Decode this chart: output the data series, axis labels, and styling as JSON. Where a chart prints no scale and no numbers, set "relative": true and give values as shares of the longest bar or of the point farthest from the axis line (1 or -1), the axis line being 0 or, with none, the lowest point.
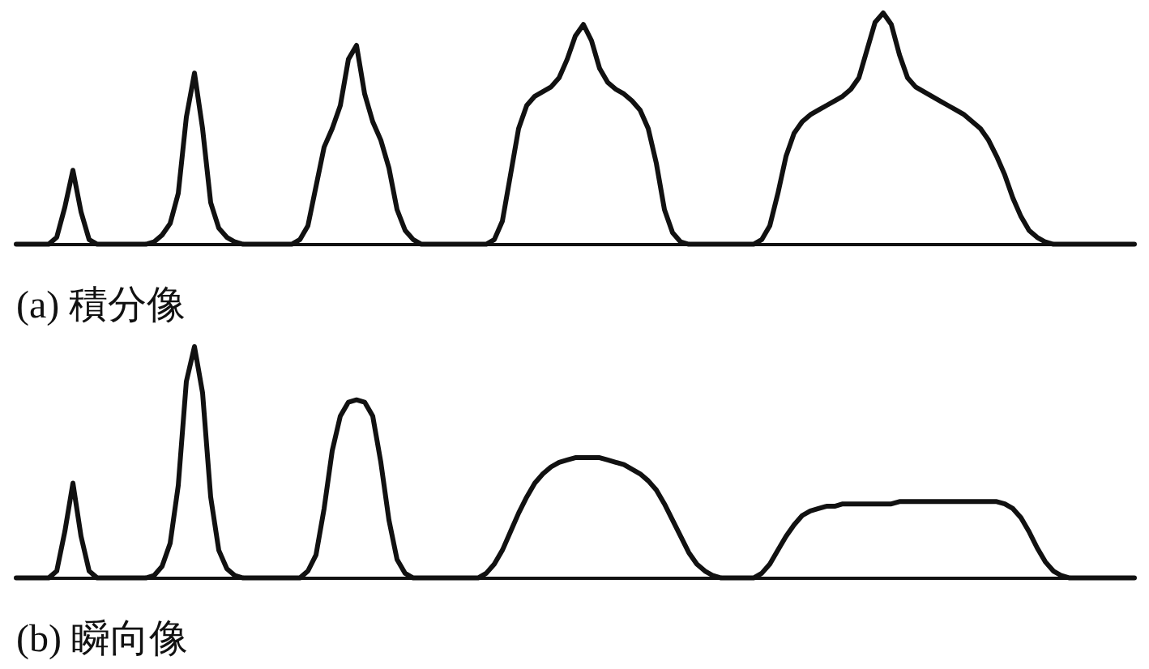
{
  "chart_data": [
    {
      "type": "line",
      "xlabel": "(a) 積分像",
      "relative": true,
      "grid": false,
      "legend": false,
      "marker": "none",
      "line_style": "solid",
      "categories": [
        null,
        null,
        null,
        null,
        null,
        null,
        null,
        null,
        null,
        null,
        null,
        null,
        null,
        null,
        null,
        null,
        null,
        null,
        null,
        null,
        null,
        null,
        null,
        null,
        null,
        null,
        null,
        null,
        null,
        null,
        null,
        null,
        null,
        null,
        null,
        null,
        null,
        null,
        null,
        null,
        null,
        null,
        null,
        null,
        null,
        null,
        null,
        null,
        null,
        null,
        null,
        null,
        null,
        null,
        null,
        null,
        null,
        null,
        null,
        null,
        null,
        null,
        null,
        null,
        null,
        null,
        null,
        null,
        null,
        null,
        null,
        null,
        null,
        null,
        null,
        null,
        null,
        null,
        null,
        null,
        null,
        null,
        null,
        null,
        null,
        null,
        null,
        null,
        null,
        null,
        null,
        null,
        null,
        null,
        null,
        null,
        null,
        null,
        null,
        null,
        null,
        null,
        null,
        null,
        null,
        null,
        null,
        null,
        null,
        null,
        null,
        null,
        null,
        null,
        null,
        null,
        null,
        null,
        null,
        null,
        null,
        null,
        null,
        null,
        null,
        null,
        null,
        null,
        null,
        null,
        null,
        null,
        null,
        null,
        null,
        null,
        null,
        null,
        null
      ],
      "series": [
        {
          "color": "#111111",
          "values": [
            0,
            0,
            0,
            0,
            0,
            0.03,
            0.16,
            0.32,
            0.14,
            0.02,
            0,
            0,
            0,
            0,
            0,
            0,
            0,
            0.01,
            0.04,
            0.09,
            0.22,
            0.55,
            0.74,
            0.5,
            0.18,
            0.07,
            0.03,
            0.01,
            0,
            0,
            0,
            0,
            0,
            0,
            0,
            0.02,
            0.08,
            0.25,
            0.42,
            0.5,
            0.6,
            0.8,
            0.86,
            0.65,
            0.53,
            0.45,
            0.33,
            0.15,
            0.06,
            0.02,
            0,
            0,
            0,
            0,
            0,
            0,
            0,
            0,
            0,
            0.02,
            0.1,
            0.3,
            0.5,
            0.6,
            0.64,
            0.66,
            0.68,
            0.72,
            0.8,
            0.9,
            0.95,
            0.88,
            0.76,
            0.7,
            0.67,
            0.65,
            0.62,
            0.58,
            0.5,
            0.35,
            0.15,
            0.05,
            0.01,
            0,
            0,
            0,
            0,
            0,
            0,
            0,
            0,
            0,
            0.02,
            0.08,
            0.22,
            0.38,
            0.48,
            0.53,
            0.56,
            0.58,
            0.6,
            0.62,
            0.64,
            0.67,
            0.72,
            0.84,
            0.96,
            1,
            0.95,
            0.82,
            0.72,
            0.68,
            0.66,
            0.64,
            0.62,
            0.6,
            0.58,
            0.56,
            0.53,
            0.5,
            0.45,
            0.38,
            0.3,
            0.2,
            0.12,
            0.06,
            0.03,
            0.01,
            0,
            0,
            0,
            0,
            0,
            0,
            0,
            0,
            0,
            0,
            0
          ]
        }
      ]
    },
    {
      "type": "line",
      "xlabel": "(b) 瞬向像",
      "relative": true,
      "grid": false,
      "legend": false,
      "marker": "none",
      "line_style": "solid",
      "categories": [
        null,
        null,
        null,
        null,
        null,
        null,
        null,
        null,
        null,
        null,
        null,
        null,
        null,
        null,
        null,
        null,
        null,
        null,
        null,
        null,
        null,
        null,
        null,
        null,
        null,
        null,
        null,
        null,
        null,
        null,
        null,
        null,
        null,
        null,
        null,
        null,
        null,
        null,
        null,
        null,
        null,
        null,
        null,
        null,
        null,
        null,
        null,
        null,
        null,
        null,
        null,
        null,
        null,
        null,
        null,
        null,
        null,
        null,
        null,
        null,
        null,
        null,
        null,
        null,
        null,
        null,
        null,
        null,
        null,
        null,
        null,
        null,
        null,
        null,
        null,
        null,
        null,
        null,
        null,
        null,
        null,
        null,
        null,
        null,
        null,
        null,
        null,
        null,
        null,
        null,
        null,
        null,
        null,
        null,
        null,
        null,
        null,
        null,
        null,
        null,
        null,
        null,
        null,
        null,
        null,
        null,
        null,
        null,
        null,
        null,
        null,
        null,
        null,
        null,
        null,
        null,
        null,
        null,
        null,
        null,
        null,
        null,
        null,
        null,
        null,
        null,
        null,
        null,
        null,
        null,
        null,
        null,
        null,
        null,
        null,
        null,
        null,
        null,
        null
      ],
      "series": [
        {
          "color": "#111111",
          "values": [
            0,
            0,
            0,
            0,
            0,
            0.03,
            0.2,
            0.41,
            0.18,
            0.03,
            0,
            0,
            0,
            0,
            0,
            0,
            0,
            0.01,
            0.05,
            0.15,
            0.4,
            0.85,
            1,
            0.8,
            0.35,
            0.12,
            0.04,
            0.01,
            0,
            0,
            0,
            0,
            0,
            0,
            0,
            0,
            0.03,
            0.1,
            0.3,
            0.55,
            0.7,
            0.76,
            0.77,
            0.76,
            0.7,
            0.5,
            0.25,
            0.08,
            0.02,
            0,
            0,
            0,
            0,
            0,
            0,
            0,
            0,
            0,
            0.02,
            0.06,
            0.12,
            0.2,
            0.28,
            0.35,
            0.41,
            0.45,
            0.48,
            0.5,
            0.51,
            0.52,
            0.52,
            0.52,
            0.52,
            0.51,
            0.5,
            0.49,
            0.47,
            0.45,
            0.42,
            0.38,
            0.32,
            0.25,
            0.18,
            0.11,
            0.06,
            0.03,
            0.01,
            0,
            0,
            0,
            0,
            0,
            0.02,
            0.06,
            0.12,
            0.18,
            0.23,
            0.27,
            0.29,
            0.3,
            0.31,
            0.31,
            0.32,
            0.32,
            0.32,
            0.32,
            0.32,
            0.32,
            0.32,
            0.33,
            0.33,
            0.33,
            0.33,
            0.33,
            0.33,
            0.33,
            0.33,
            0.33,
            0.33,
            0.33,
            0.33,
            0.33,
            0.32,
            0.3,
            0.26,
            0.2,
            0.13,
            0.07,
            0.03,
            0.01,
            0,
            0,
            0,
            0,
            0,
            0,
            0,
            0,
            0
          ]
        }
      ]
    }
  ]
}
